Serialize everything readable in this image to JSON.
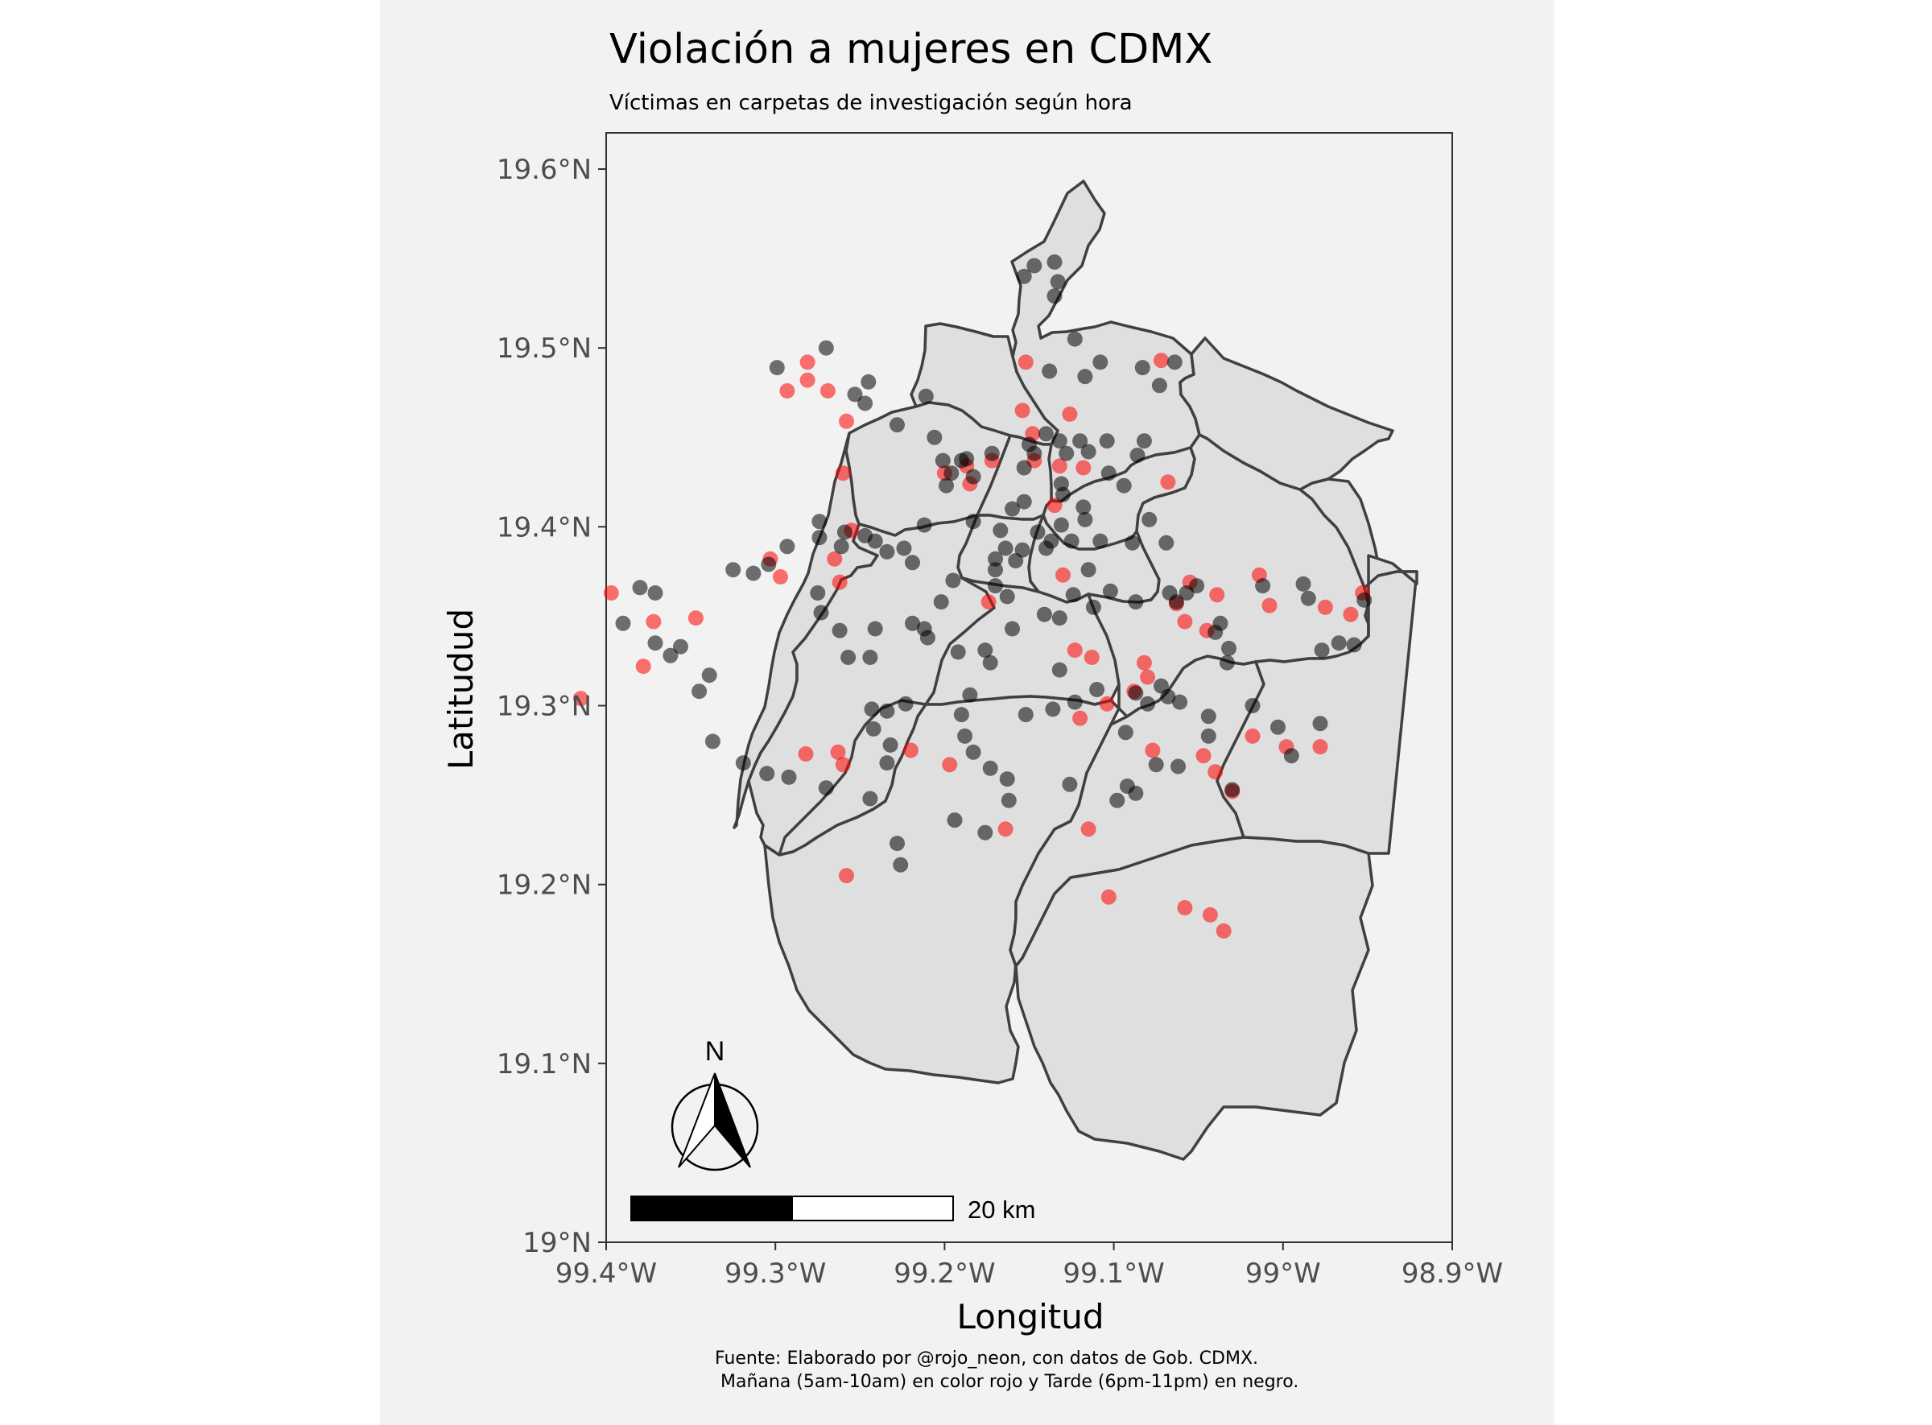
{
  "title": "Violación a mujeres en CDMX",
  "subtitle": "Víctimas en carpetas de investigación según hora",
  "caption_line1": "Fuente: Elaborado por @rojo_neon, con datos de Gob. CDMX.",
  "caption_line2": " Mañana (5am-10am) en color rojo y Tarde (6pm-11pm) en negro.",
  "compass_label": "N",
  "scale_label": "20 km",
  "colors": {
    "morning": "#ff0000",
    "evening": "#000000",
    "polygon_fill": "#dfdfdf",
    "polygon_stroke": "#404040",
    "panel_bg": "#f2f2f2"
  },
  "chart_data": {
    "type": "scatter",
    "title": "Violación a mujeres en CDMX",
    "subtitle": "Víctimas en carpetas de investigación según hora",
    "xlabel": "Longitud",
    "ylabel": "Latitudud",
    "xlim": [
      -99.4,
      -98.9
    ],
    "ylim": [
      19.0,
      19.62
    ],
    "x_ticks": [
      {
        "value": -99.4,
        "label": "99.4°W"
      },
      {
        "value": -99.3,
        "label": "99.3°W"
      },
      {
        "value": -99.2,
        "label": "99.2°W"
      },
      {
        "value": -99.1,
        "label": "99.1°W"
      },
      {
        "value": -99.0,
        "label": "99°W"
      },
      {
        "value": -98.9,
        "label": "98.9°W"
      }
    ],
    "y_ticks": [
      {
        "value": 19.0,
        "label": "19°N"
      },
      {
        "value": 19.1,
        "label": "19.1°N"
      },
      {
        "value": 19.2,
        "label": "19.2°N"
      },
      {
        "value": 19.3,
        "label": "19.3°N"
      },
      {
        "value": 19.4,
        "label": "19.4°N"
      },
      {
        "value": 19.5,
        "label": "19.5°N"
      },
      {
        "value": 19.6,
        "label": "19.6°N"
      }
    ],
    "grid": false,
    "series": [
      {
        "key": "morning",
        "color": "#ff0000",
        "points": [
          [
            -99.262,
            19.369
          ],
          [
            -99.293,
            19.476
          ],
          [
            -99.281,
            19.492
          ],
          [
            -99.281,
            19.482
          ],
          [
            -99.269,
            19.476
          ],
          [
            -99.258,
            19.459
          ],
          [
            -99.26,
            19.43
          ],
          [
            -99.255,
            19.398
          ],
          [
            -99.265,
            19.382
          ],
          [
            -99.303,
            19.382
          ],
          [
            -99.297,
            19.372
          ],
          [
            -99.347,
            19.349
          ],
          [
            -99.372,
            19.347
          ],
          [
            -99.397,
            19.363
          ],
          [
            -99.378,
            19.322
          ],
          [
            -99.415,
            19.304
          ],
          [
            -99.282,
            19.273
          ],
          [
            -99.263,
            19.274
          ],
          [
            -99.26,
            19.267
          ],
          [
            -99.22,
            19.275
          ],
          [
            -99.197,
            19.267
          ],
          [
            -99.164,
            19.231
          ],
          [
            -99.258,
            19.205
          ],
          [
            -99.103,
            19.193
          ],
          [
            -99.058,
            19.187
          ],
          [
            -99.043,
            19.183
          ],
          [
            -99.035,
            19.174
          ],
          [
            -99.115,
            19.231
          ],
          [
            -99.13,
            19.373
          ],
          [
            -99.174,
            19.358
          ],
          [
            -99.123,
            19.331
          ],
          [
            -99.113,
            19.327
          ],
          [
            -99.082,
            19.324
          ],
          [
            -99.08,
            19.316
          ],
          [
            -99.088,
            19.308
          ],
          [
            -99.104,
            19.301
          ],
          [
            -99.12,
            19.293
          ],
          [
            -99.077,
            19.275
          ],
          [
            -99.047,
            19.272
          ],
          [
            -99.04,
            19.263
          ],
          [
            -99.03,
            19.252
          ],
          [
            -99.018,
            19.283
          ],
          [
            -98.998,
            19.277
          ],
          [
            -98.978,
            19.277
          ],
          [
            -98.96,
            19.351
          ],
          [
            -98.953,
            19.363
          ],
          [
            -98.975,
            19.355
          ],
          [
            -99.039,
            19.362
          ],
          [
            -99.055,
            19.369
          ],
          [
            -99.063,
            19.357
          ],
          [
            -99.058,
            19.347
          ],
          [
            -99.045,
            19.342
          ],
          [
            -99.014,
            19.373
          ],
          [
            -99.008,
            19.356
          ],
          [
            -99.135,
            19.412
          ],
          [
            -99.147,
            19.437
          ],
          [
            -99.148,
            19.452
          ],
          [
            -99.154,
            19.465
          ],
          [
            -99.185,
            19.424
          ],
          [
            -99.2,
            19.43
          ],
          [
            -99.187,
            19.434
          ],
          [
            -99.172,
            19.437
          ],
          [
            -99.152,
            19.492
          ],
          [
            -99.072,
            19.493
          ],
          [
            -99.068,
            19.425
          ],
          [
            -99.118,
            19.433
          ],
          [
            -99.132,
            19.434
          ],
          [
            -99.126,
            19.463
          ]
        ]
      },
      {
        "key": "evening",
        "color": "#000000",
        "points": [
          [
            -99.27,
            19.5
          ],
          [
            -99.299,
            19.489
          ],
          [
            -99.245,
            19.481
          ],
          [
            -99.253,
            19.474
          ],
          [
            -99.247,
            19.469
          ],
          [
            -99.228,
            19.457
          ],
          [
            -99.211,
            19.473
          ],
          [
            -99.206,
            19.45
          ],
          [
            -99.201,
            19.437
          ],
          [
            -99.187,
            19.438
          ],
          [
            -99.172,
            19.441
          ],
          [
            -99.153,
            19.54
          ],
          [
            -99.147,
            19.546
          ],
          [
            -99.135,
            19.548
          ],
          [
            -99.135,
            19.529
          ],
          [
            -99.133,
            19.537
          ],
          [
            -99.123,
            19.505
          ],
          [
            -99.108,
            19.492
          ],
          [
            -99.117,
            19.484
          ],
          [
            -99.138,
            19.487
          ],
          [
            -99.083,
            19.489
          ],
          [
            -99.073,
            19.479
          ],
          [
            -99.064,
            19.492
          ],
          [
            -99.104,
            19.448
          ],
          [
            -99.082,
            19.448
          ],
          [
            -99.086,
            19.44
          ],
          [
            -99.12,
            19.448
          ],
          [
            -99.115,
            19.442
          ],
          [
            -99.103,
            19.43
          ],
          [
            -99.094,
            19.423
          ],
          [
            -99.089,
            19.391
          ],
          [
            -99.079,
            19.404
          ],
          [
            -99.069,
            19.391
          ],
          [
            -99.108,
            19.392
          ],
          [
            -99.131,
            19.401
          ],
          [
            -99.137,
            19.392
          ],
          [
            -99.145,
            19.397
          ],
          [
            -99.14,
            19.388
          ],
          [
            -99.115,
            19.376
          ],
          [
            -99.124,
            19.362
          ],
          [
            -99.112,
            19.355
          ],
          [
            -99.102,
            19.364
          ],
          [
            -99.087,
            19.358
          ],
          [
            -99.067,
            19.363
          ],
          [
            -99.063,
            19.358
          ],
          [
            -99.051,
            19.367
          ],
          [
            -99.057,
            19.363
          ],
          [
            -99.037,
            19.346
          ],
          [
            -99.04,
            19.341
          ],
          [
            -99.032,
            19.332
          ],
          [
            -99.033,
            19.324
          ],
          [
            -99.072,
            19.311
          ],
          [
            -99.068,
            19.305
          ],
          [
            -99.08,
            19.301
          ],
          [
            -99.087,
            19.307
          ],
          [
            -99.061,
            19.302
          ],
          [
            -99.044,
            19.294
          ],
          [
            -99.044,
            19.283
          ],
          [
            -99.062,
            19.266
          ],
          [
            -99.03,
            19.253
          ],
          [
            -99.018,
            19.3
          ],
          [
            -99.003,
            19.288
          ],
          [
            -98.978,
            19.29
          ],
          [
            -98.995,
            19.272
          ],
          [
            -98.977,
            19.331
          ],
          [
            -98.967,
            19.335
          ],
          [
            -98.958,
            19.334
          ],
          [
            -98.952,
            19.359
          ],
          [
            -98.985,
            19.36
          ],
          [
            -98.988,
            19.368
          ],
          [
            -99.012,
            19.367
          ],
          [
            -99.093,
            19.285
          ],
          [
            -99.092,
            19.255
          ],
          [
            -99.075,
            19.267
          ],
          [
            -99.087,
            19.251
          ],
          [
            -99.098,
            19.247
          ],
          [
            -99.126,
            19.256
          ],
          [
            -99.163,
            19.259
          ],
          [
            -99.162,
            19.247
          ],
          [
            -99.176,
            19.229
          ],
          [
            -99.194,
            19.236
          ],
          [
            -99.228,
            19.223
          ],
          [
            -99.226,
            19.211
          ],
          [
            -99.173,
            19.265
          ],
          [
            -99.183,
            19.274
          ],
          [
            -99.188,
            19.283
          ],
          [
            -99.19,
            19.295
          ],
          [
            -99.185,
            19.306
          ],
          [
            -99.173,
            19.324
          ],
          [
            -99.176,
            19.331
          ],
          [
            -99.192,
            19.33
          ],
          [
            -99.21,
            19.338
          ],
          [
            -99.212,
            19.343
          ],
          [
            -99.219,
            19.346
          ],
          [
            -99.202,
            19.358
          ],
          [
            -99.195,
            19.37
          ],
          [
            -99.163,
            19.361
          ],
          [
            -99.16,
            19.343
          ],
          [
            -99.141,
            19.351
          ],
          [
            -99.132,
            19.349
          ],
          [
            -99.132,
            19.32
          ],
          [
            -99.11,
            19.309
          ],
          [
            -99.123,
            19.302
          ],
          [
            -99.136,
            19.298
          ],
          [
            -99.152,
            19.295
          ],
          [
            -99.223,
            19.301
          ],
          [
            -99.234,
            19.297
          ],
          [
            -99.243,
            19.298
          ],
          [
            -99.242,
            19.287
          ],
          [
            -99.232,
            19.278
          ],
          [
            -99.234,
            19.268
          ],
          [
            -99.244,
            19.248
          ],
          [
            -99.27,
            19.254
          ],
          [
            -99.292,
            19.26
          ],
          [
            -99.305,
            19.262
          ],
          [
            -99.319,
            19.268
          ],
          [
            -99.337,
            19.28
          ],
          [
            -99.345,
            19.308
          ],
          [
            -99.339,
            19.317
          ],
          [
            -99.356,
            19.333
          ],
          [
            -99.362,
            19.328
          ],
          [
            -99.371,
            19.335
          ],
          [
            -99.39,
            19.346
          ],
          [
            -99.38,
            19.366
          ],
          [
            -99.371,
            19.363
          ],
          [
            -99.325,
            19.376
          ],
          [
            -99.313,
            19.374
          ],
          [
            -99.304,
            19.379
          ],
          [
            -99.293,
            19.389
          ],
          [
            -99.275,
            19.363
          ],
          [
            -99.273,
            19.352
          ],
          [
            -99.262,
            19.342
          ],
          [
            -99.257,
            19.327
          ],
          [
            -99.244,
            19.327
          ],
          [
            -99.241,
            19.343
          ],
          [
            -99.219,
            19.38
          ],
          [
            -99.224,
            19.388
          ],
          [
            -99.17,
            19.367
          ],
          [
            -99.17,
            19.376
          ],
          [
            -99.17,
            19.382
          ],
          [
            -99.167,
            19.398
          ],
          [
            -99.16,
            19.41
          ],
          [
            -99.153,
            19.414
          ],
          [
            -99.153,
            19.433
          ],
          [
            -99.147,
            19.441
          ],
          [
            -99.15,
            19.446
          ],
          [
            -99.14,
            19.452
          ],
          [
            -99.132,
            19.448
          ],
          [
            -99.128,
            19.441
          ],
          [
            -99.131,
            19.424
          ],
          [
            -99.13,
            19.418
          ],
          [
            -99.118,
            19.411
          ],
          [
            -99.117,
            19.404
          ],
          [
            -99.125,
            19.392
          ],
          [
            -99.154,
            19.387
          ],
          [
            -99.158,
            19.381
          ],
          [
            -99.164,
            19.388
          ],
          [
            -99.183,
            19.403
          ],
          [
            -99.183,
            19.428
          ],
          [
            -99.19,
            19.437
          ],
          [
            -99.196,
            19.43
          ],
          [
            -99.199,
            19.423
          ],
          [
            -99.212,
            19.401
          ],
          [
            -99.234,
            19.386
          ],
          [
            -99.241,
            19.392
          ],
          [
            -99.247,
            19.395
          ],
          [
            -99.259,
            19.397
          ],
          [
            -99.274,
            19.403
          ],
          [
            -99.274,
            19.394
          ],
          [
            -99.261,
            19.389
          ]
        ]
      }
    ]
  }
}
